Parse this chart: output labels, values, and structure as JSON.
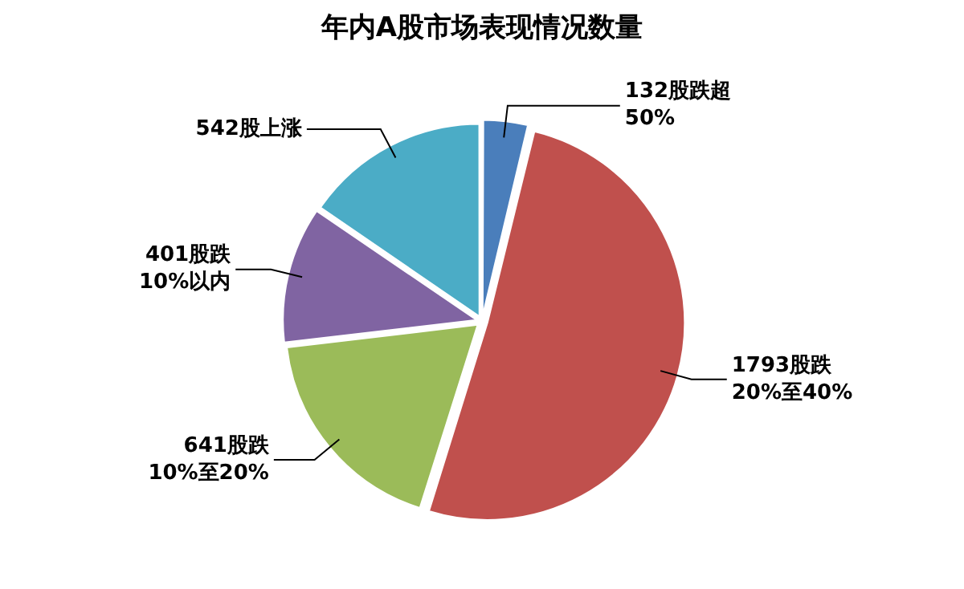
{
  "chart_data": {
    "type": "pie",
    "title": "年内A股市场表现情况数量",
    "categories": [
      "132股跌超50%",
      "1793股跌20%至40%",
      "641股跌10%至20%",
      "401股跌10%以内",
      "542股上涨"
    ],
    "values": [
      132,
      1793,
      641,
      401,
      542
    ],
    "colors": [
      "#4a7ebb",
      "#c0504d",
      "#9bbb59",
      "#8064a2",
      "#4bacc6"
    ],
    "legend": false
  }
}
